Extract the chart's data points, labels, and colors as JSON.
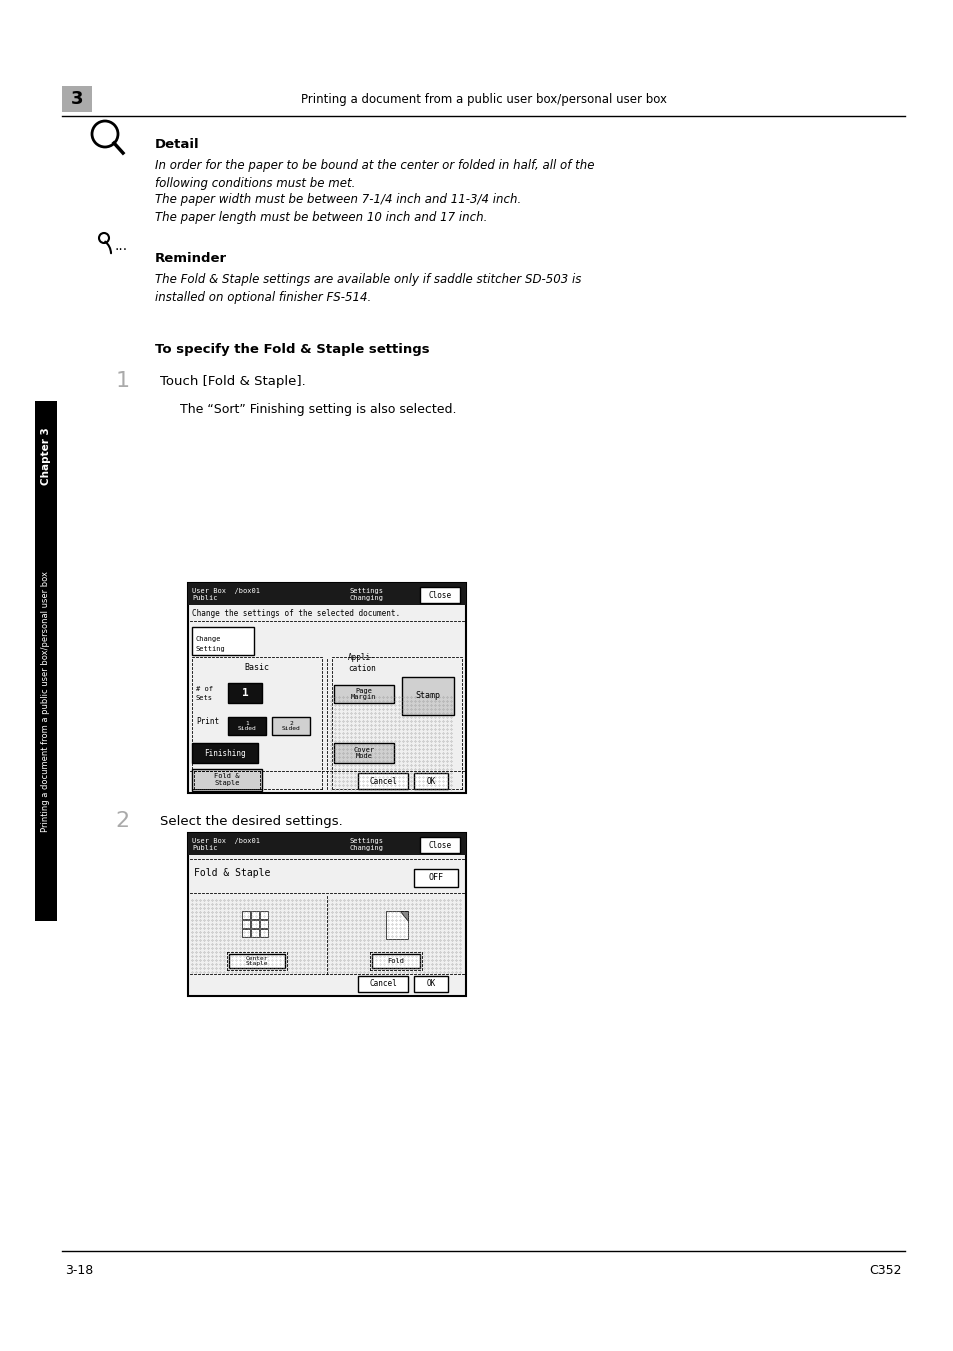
{
  "page_bg": "#ffffff",
  "chapter_num": "3",
  "header_text": "Printing a document from a public user box/personal user box",
  "sidebar_text": "Chapter 3",
  "sidebar_text2": "Printing a document from a public user box/personal user box",
  "detail_label": "Detail",
  "detail_lines": [
    "In order for the paper to be bound at the center or folded in half, all of the",
    "following conditions must be met.",
    "The paper width must be between 7-1/4 inch and 11-3/4 inch.",
    "The paper length must be between 10 inch and 17 inch."
  ],
  "reminder_label": "Reminder",
  "reminder_lines": [
    "The Fold & Staple settings are available only if saddle stitcher SD-503 is",
    "installed on optional finisher FS-514."
  ],
  "heading": "To specify the Fold & Staple settings",
  "step1_num": "1",
  "step1_text": "Touch [Fold & Staple].",
  "step1_sub": "The “Sort” Finishing setting is also selected.",
  "step2_num": "2",
  "step2_text": "Select the desired settings.",
  "footer_left": "3-18",
  "footer_right": "C352"
}
